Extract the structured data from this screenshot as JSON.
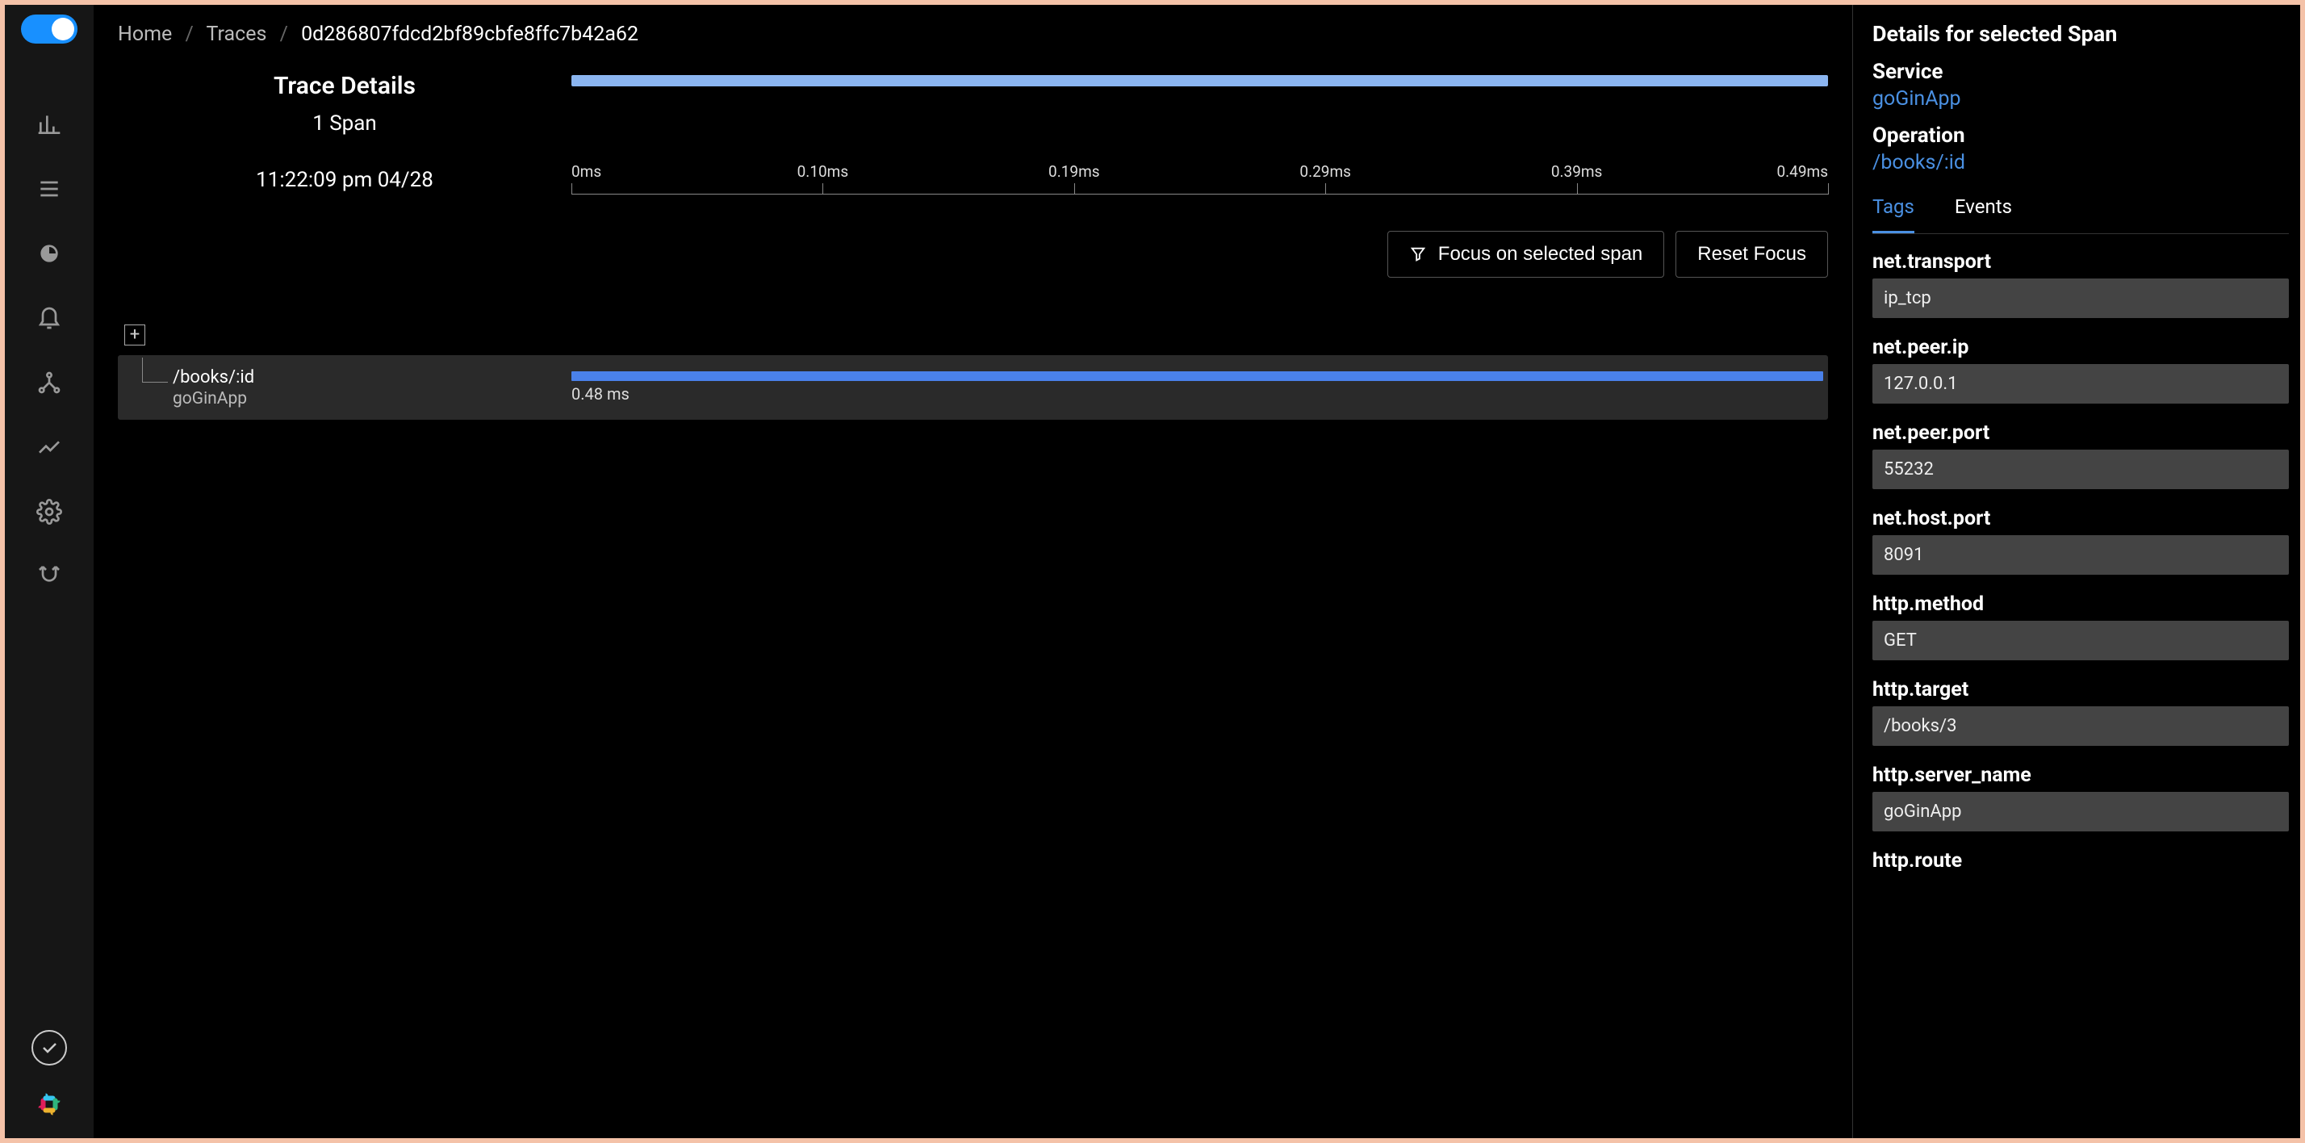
{
  "breadcrumb": {
    "home": "Home",
    "traces": "Traces",
    "traceId": "0d286807fdcd2bf89cbfe8ffc7b42a62"
  },
  "trace": {
    "title": "Trace Details",
    "spanCount": "1 Span",
    "timestamp": "11:22:09 pm 04/28"
  },
  "timeline": {
    "ticks": [
      "0ms",
      "0.10ms",
      "0.19ms",
      "0.29ms",
      "0.39ms",
      "0.49ms"
    ],
    "positions_pct": [
      0,
      20,
      40,
      60,
      80,
      100
    ],
    "overview_bar_color": "#8bb5f0"
  },
  "actions": {
    "focus": "Focus on selected span",
    "reset": "Reset Focus"
  },
  "span": {
    "operation": "/books/:id",
    "service": "goGinApp",
    "duration": "0.48 ms",
    "bar_color": "#4a81ea"
  },
  "details": {
    "title": "Details for selected Span",
    "serviceLabel": "Service",
    "serviceValue": "goGinApp",
    "operationLabel": "Operation",
    "operationValue": "/books/:id",
    "tabs": {
      "tags": "Tags",
      "events": "Events"
    },
    "tags": [
      {
        "key": "net.transport",
        "value": "ip_tcp"
      },
      {
        "key": "net.peer.ip",
        "value": "127.0.0.1"
      },
      {
        "key": "net.peer.port",
        "value": "55232"
      },
      {
        "key": "net.host.port",
        "value": "8091"
      },
      {
        "key": "http.method",
        "value": "GET"
      },
      {
        "key": "http.target",
        "value": "/books/3"
      },
      {
        "key": "http.server_name",
        "value": "goGinApp"
      },
      {
        "key": "http.route",
        "value": ""
      }
    ]
  },
  "colors": {
    "accent": "#4a90e2",
    "toggle": "#1890ff",
    "panel_bg": "#444444"
  }
}
